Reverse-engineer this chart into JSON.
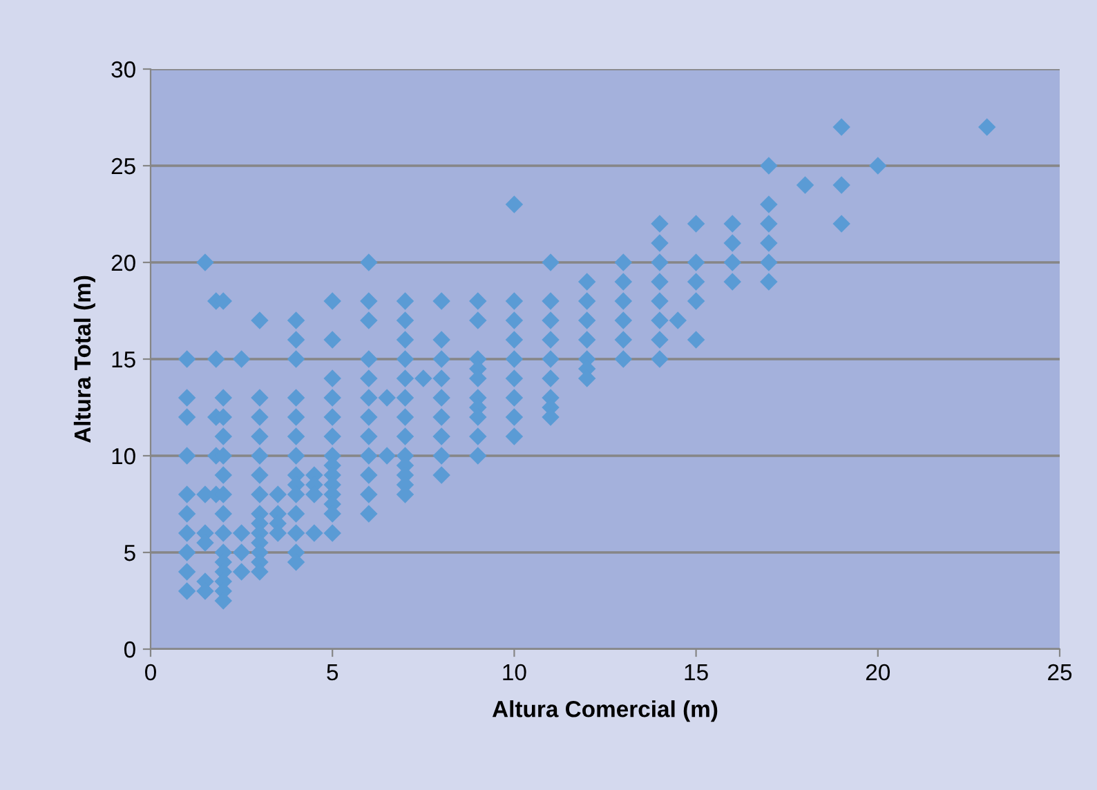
{
  "chart_data": {
    "type": "scatter",
    "xlabel": "Altura Comercial (m)",
    "ylabel": "Altura Total (m)",
    "xlim": [
      0,
      25
    ],
    "xticks": [
      0,
      5,
      10,
      15,
      20,
      25
    ],
    "ylim": [
      0,
      30
    ],
    "yticks": [
      0,
      5,
      10,
      15,
      20,
      25,
      30
    ],
    "grid": "y",
    "marker": "diamond",
    "series": [
      {
        "color": "#5a9bd5",
        "x": [
          1,
          1,
          1,
          1,
          1,
          1,
          1,
          1,
          1,
          1,
          1.5,
          1.5,
          1.5,
          1.5,
          1.5,
          1.5,
          1.8,
          1.8,
          1.8,
          1.8,
          1.8,
          2,
          2,
          2,
          2,
          2,
          2,
          2,
          2,
          2,
          2,
          2,
          2,
          2,
          2,
          2,
          2.5,
          2.5,
          2.5,
          2.5,
          3,
          3,
          3,
          3,
          3,
          3,
          3,
          3,
          3,
          3,
          3,
          3,
          3,
          3,
          3.5,
          3.5,
          3.5,
          3.5,
          4,
          4,
          4,
          4,
          4,
          4,
          4,
          4,
          4,
          4,
          4,
          4,
          4,
          4,
          4.5,
          4.5,
          4.5,
          4.5,
          5,
          5,
          5,
          5,
          5,
          5,
          5,
          5,
          5,
          5,
          5,
          5,
          5,
          5,
          6,
          6,
          6,
          6,
          6,
          6,
          6,
          6,
          6,
          6,
          6,
          6,
          6.5,
          6.5,
          7,
          7,
          7,
          7,
          7,
          7,
          7,
          7,
          7,
          7,
          7,
          7,
          7,
          7.5,
          8,
          8,
          8,
          8,
          8,
          8,
          8,
          8,
          8,
          9,
          9,
          9,
          9,
          9,
          9,
          9,
          9,
          9,
          9,
          10,
          10,
          10,
          10,
          10,
          10,
          10,
          10,
          10,
          11,
          11,
          11,
          11,
          11,
          11,
          11,
          11,
          11,
          12,
          12,
          12,
          12,
          12,
          12,
          12,
          13,
          13,
          13,
          13,
          13,
          13,
          14,
          14,
          14,
          14,
          14,
          14,
          14,
          14,
          14.5,
          15,
          15,
          15,
          15,
          15,
          16,
          16,
          16,
          16,
          17,
          17,
          17,
          17,
          17,
          17,
          18,
          19,
          19,
          19,
          20,
          23
        ],
        "values": [
          15,
          13,
          12,
          10,
          8,
          7,
          6,
          5,
          4,
          3,
          20,
          8,
          6,
          5.5,
          3.5,
          3,
          18,
          15,
          12,
          10,
          8,
          18,
          13,
          12,
          11,
          10,
          9,
          8,
          7,
          6,
          5,
          4.5,
          4,
          3.5,
          3,
          2.5,
          15,
          6,
          5,
          4,
          17,
          13,
          12,
          11,
          10,
          9,
          8,
          7,
          6.5,
          6,
          5.5,
          5,
          4.5,
          4,
          8,
          7,
          6.5,
          6,
          17,
          16,
          15,
          13,
          12,
          11,
          10,
          9,
          8.5,
          8,
          7,
          6,
          5,
          4.5,
          9,
          8.5,
          8,
          6,
          18,
          16,
          14,
          13,
          12,
          11,
          10,
          9.5,
          9,
          8.5,
          8,
          7.5,
          7,
          6,
          20,
          18,
          17,
          15,
          14,
          13,
          12,
          11,
          10,
          9,
          8,
          7,
          13,
          10,
          18,
          17,
          16,
          15,
          14,
          13,
          12,
          11,
          10,
          9.5,
          9,
          8.5,
          8,
          14,
          18,
          16,
          15,
          14,
          13,
          12,
          11,
          10,
          9,
          18,
          17,
          15,
          14.5,
          14,
          13,
          12.5,
          12,
          11,
          10,
          23,
          18,
          17,
          16,
          15,
          14,
          13,
          12,
          11,
          20,
          18,
          17,
          16,
          15,
          14,
          13,
          12.5,
          12,
          19,
          18,
          17,
          16,
          15,
          14.5,
          14,
          20,
          19,
          18,
          17,
          16,
          15,
          22,
          21,
          20,
          19,
          18,
          17,
          16,
          15,
          17,
          22,
          20,
          19,
          18,
          16,
          22,
          21,
          20,
          19,
          25,
          23,
          22,
          21,
          20,
          19,
          24,
          27,
          24,
          22,
          25,
          27
        ]
      }
    ]
  }
}
